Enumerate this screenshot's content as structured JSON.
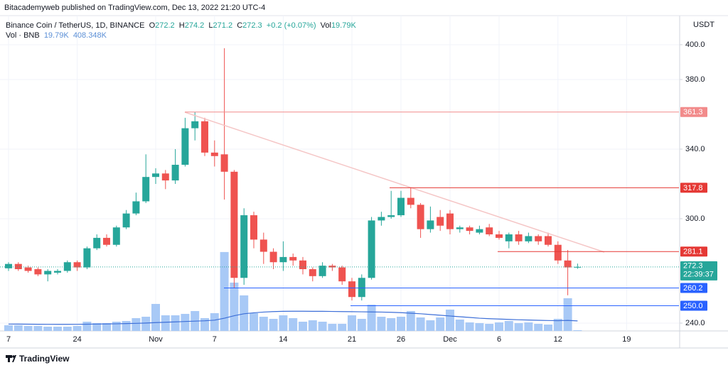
{
  "header": {
    "published": "Bitacademyweb published on TradingView.com, Dec 13, 2022 21:20 UTC-4",
    "brand": "TradingView"
  },
  "chart_data": {
    "type": "candlestick",
    "symbol": "Binance Coin / TetherUS, 1D, BINANCE",
    "ohlc_labels": [
      "O",
      "H",
      "L",
      "C"
    ],
    "change": "+0.2 (+0.07%)",
    "volume_label": "Vol",
    "volume_value_label": "19.79K",
    "volume_title": "Vol · BNB",
    "volume_ma_label": "408.348K",
    "currency": "USDT",
    "countdown": "22:39:37",
    "up_color": "#26a69a",
    "down_color": "#ef5350",
    "volume_color": "#a8c9f6",
    "volume_ma_color": "#3d6fd8",
    "grid": true,
    "categories": [
      "7",
      null,
      null,
      null,
      null,
      null,
      null,
      "24",
      null,
      null,
      null,
      null,
      null,
      null,
      null,
      "Nov",
      null,
      null,
      null,
      null,
      null,
      "7",
      null,
      null,
      null,
      null,
      null,
      null,
      "14",
      null,
      null,
      null,
      null,
      null,
      null,
      "21",
      null,
      null,
      null,
      null,
      "26",
      null,
      null,
      null,
      null,
      "Dec",
      null,
      null,
      null,
      null,
      "6",
      null,
      null,
      null,
      null,
      null,
      "12",
      null,
      null,
      null,
      null,
      null,
      null,
      "19"
    ],
    "open": [
      271.5,
      274,
      272,
      271,
      268,
      269,
      270,
      275,
      272,
      283,
      289,
      285,
      295,
      303,
      310,
      324,
      326,
      322,
      331,
      352,
      356,
      338,
      337,
      327,
      266,
      302,
      288,
      281,
      275,
      278,
      276,
      271,
      267,
      273,
      272,
      264,
      255,
      266,
      299,
      301,
      302,
      312,
      308,
      294,
      301,
      303,
      294,
      295,
      292,
      295,
      291,
      287,
      291,
      287,
      290,
      290,
      285,
      276,
      272.2,
      null,
      null,
      null,
      null,
      null
    ],
    "high": [
      275,
      275,
      273,
      272,
      271,
      271,
      276,
      276,
      284,
      291,
      291,
      296,
      305,
      315,
      337,
      329,
      328,
      340,
      358,
      361.3,
      358,
      345,
      398,
      328,
      306,
      304,
      292,
      283,
      287,
      280,
      278,
      272,
      275,
      274,
      273,
      266,
      268,
      301,
      304,
      316,
      316,
      318,
      309,
      307,
      305,
      305,
      296,
      296,
      296,
      297,
      293,
      292,
      293,
      292,
      291,
      292,
      287,
      282,
      274.2,
      null,
      null,
      null,
      null,
      null
    ],
    "low": [
      270,
      270,
      269,
      267,
      264,
      268,
      269,
      270,
      271,
      282,
      284,
      284,
      294,
      302,
      309,
      320,
      317,
      320,
      330,
      345,
      336,
      330,
      311,
      260,
      262,
      283,
      274,
      271,
      270,
      273,
      268,
      264,
      266,
      270,
      262,
      253,
      253,
      265,
      296,
      300,
      301,
      306,
      289,
      292,
      293,
      291,
      292,
      291,
      291,
      290,
      288,
      283,
      285,
      286,
      285,
      284,
      274,
      256,
      271.2,
      null,
      null,
      null,
      null,
      null
    ],
    "close": [
      274,
      271,
      270,
      268,
      270,
      270,
      275,
      272,
      283,
      289,
      285,
      295,
      303,
      310,
      324,
      326,
      322,
      331,
      352,
      356,
      338,
      336,
      327,
      266,
      302,
      288,
      281,
      275,
      278,
      276,
      271,
      267,
      273,
      272,
      264,
      255,
      266,
      299,
      301,
      302,
      312,
      308,
      294,
      299,
      296,
      294,
      295,
      293,
      294,
      291,
      289,
      291,
      287,
      290,
      287,
      285,
      276,
      272,
      272.3,
      null,
      null,
      null,
      null,
      null
    ],
    "volume": [
      232,
      232,
      203,
      203,
      174,
      174,
      174,
      203,
      377,
      319,
      319,
      377,
      406,
      522,
      580,
      1102,
      638,
      638,
      696,
      812,
      522,
      725,
      3219,
      1972,
      1450,
      725,
      580,
      493,
      638,
      522,
      377,
      435,
      377,
      290,
      290,
      638,
      493,
      1073,
      580,
      522,
      580,
      812,
      551,
      435,
      551,
      870,
      464,
      348,
      319,
      290,
      348,
      406,
      319,
      348,
      290,
      261,
      493,
      1334,
      19.79,
      null,
      null,
      null,
      null,
      null
    ],
    "volume_ma": [
      280,
      278,
      275,
      272,
      270,
      268,
      268,
      270,
      275,
      280,
      285,
      292,
      300,
      310,
      322,
      340,
      355,
      370,
      385,
      400,
      415,
      440,
      520,
      620,
      700,
      740,
      770,
      790,
      800,
      805,
      805,
      800,
      800,
      795,
      790,
      785,
      780,
      775,
      770,
      760,
      745,
      725,
      700,
      670,
      640,
      610,
      580,
      550,
      520,
      500,
      485,
      470,
      455,
      445,
      435,
      425,
      418,
      430,
      408.348,
      null,
      null,
      null,
      null,
      null
    ],
    "ylim": [
      235.5,
      425.7
    ],
    "volume_ylim": [
      0,
      13500
    ],
    "yticks": [
      {
        "value": 400,
        "label": "400.0"
      },
      {
        "value": 380,
        "label": "380.0"
      },
      {
        "value": 340,
        "label": "340.0"
      },
      {
        "value": 300,
        "label": "300.0"
      },
      {
        "value": 240,
        "label": "240.0"
      }
    ],
    "levels": [
      {
        "value": 361.3,
        "color": "#f28b8b"
      },
      {
        "value": 317.8,
        "color": "#e53935"
      },
      {
        "value": 281.1,
        "color": "#e53935"
      },
      {
        "value": 260.2,
        "color": "#2962ff"
      },
      {
        "value": 250,
        "label": "250.0",
        "color": "#2962ff"
      }
    ]
  }
}
